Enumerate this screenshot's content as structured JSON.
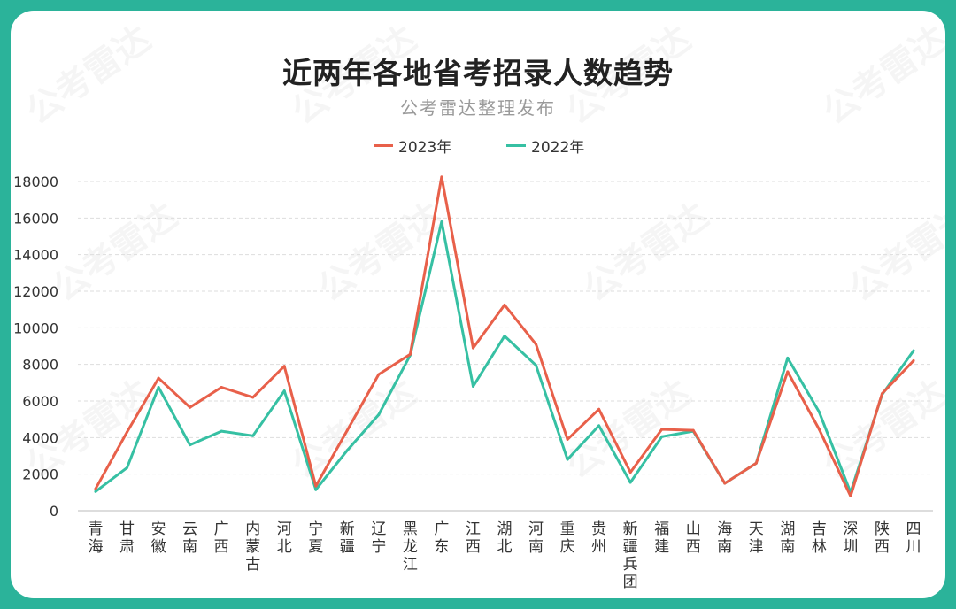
{
  "title": "近两年各地省考招录人数趋势",
  "subtitle": "公考雷达整理发布",
  "watermark_text": "公考雷达",
  "colors": {
    "background": "#2bb39a",
    "series_2023": "#e8604a",
    "series_2022": "#36c0a3",
    "grid": "#dddddd",
    "tick": "#333333"
  },
  "chart_data": {
    "type": "line",
    "title": "近两年各地省考招录人数趋势",
    "subtitle": "公考雷达整理发布",
    "xlabel": "",
    "ylabel": "",
    "ylim": [
      0,
      18000
    ],
    "yticks": [
      0,
      2000,
      4000,
      6000,
      8000,
      10000,
      12000,
      14000,
      16000,
      18000
    ],
    "grid": true,
    "legend_position": "top-center",
    "categories": [
      "青海",
      "甘肃",
      "安徽",
      "云南",
      "广西",
      "内蒙古",
      "河北",
      "宁夏",
      "新疆",
      "辽宁",
      "黑龙江",
      "广东",
      "江西",
      "湖北",
      "河南",
      "重庆",
      "贵州",
      "新疆兵团",
      "福建",
      "山西",
      "海南",
      "天津",
      "湖南",
      "吉林",
      "深圳",
      "陕西",
      "四川"
    ],
    "series": [
      {
        "name": "2023年",
        "color": "#e8604a",
        "values": [
          1200,
          4300,
          7250,
          5650,
          6750,
          6200,
          7900,
          1350,
          4400,
          7450,
          8550,
          18250,
          8900,
          11250,
          9100,
          3900,
          5550,
          2100,
          4450,
          4400,
          1500,
          2600,
          7600,
          4450,
          800,
          6400,
          8200
        ]
      },
      {
        "name": "2022年",
        "color": "#36c0a3",
        "values": [
          1050,
          2350,
          6750,
          3600,
          4350,
          4100,
          6550,
          1150,
          3300,
          5250,
          8500,
          15800,
          6800,
          9550,
          7950,
          2800,
          4650,
          1550,
          4050,
          4350,
          1500,
          2600,
          8350,
          5400,
          1000,
          6350,
          8750
        ]
      }
    ]
  }
}
